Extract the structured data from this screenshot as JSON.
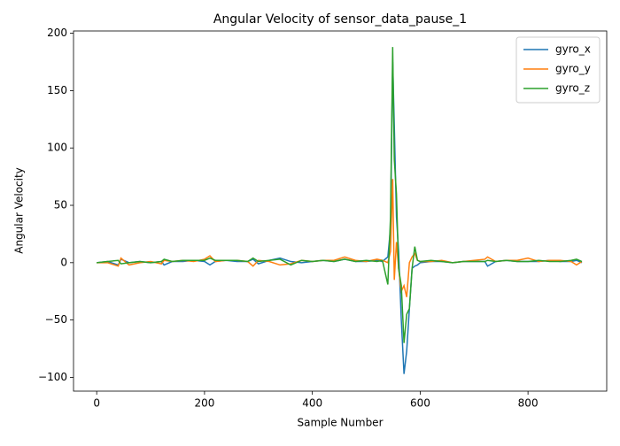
{
  "chart_data": {
    "type": "line",
    "title": "Angular Velocity of sensor_data_pause_1",
    "x_label": "Sample Number",
    "y_label": "Angular Velocity",
    "x": [
      0,
      20,
      40,
      45,
      60,
      80,
      100,
      120,
      125,
      140,
      160,
      180,
      200,
      210,
      220,
      240,
      260,
      280,
      290,
      300,
      320,
      340,
      360,
      380,
      400,
      420,
      440,
      460,
      480,
      500,
      520,
      530,
      540,
      545,
      549,
      552,
      556,
      560,
      565,
      570,
      575,
      580,
      585,
      590,
      595,
      600,
      620,
      640,
      660,
      680,
      700,
      720,
      725,
      740,
      760,
      780,
      800,
      820,
      840,
      860,
      880,
      890,
      900
    ],
    "series": [
      {
        "name": "gyro_x",
        "color": "#1f77b4",
        "values": [
          0,
          1,
          -2,
          3,
          0,
          1,
          0,
          1,
          -2,
          1,
          1,
          2,
          1,
          -2,
          1,
          2,
          1,
          1,
          3,
          -1,
          2,
          4,
          1,
          0,
          1,
          2,
          1,
          3,
          1,
          1,
          2,
          1,
          5,
          30,
          175,
          120,
          40,
          10,
          -50,
          -97,
          -77,
          -40,
          -5,
          -3,
          -2,
          0,
          1,
          1,
          0,
          1,
          1,
          1,
          -3,
          1,
          2,
          1,
          1,
          1,
          2,
          1,
          1,
          2,
          0
        ]
      },
      {
        "name": "gyro_y",
        "color": "#ff7f0e",
        "values": [
          0,
          0,
          -3,
          4,
          -2,
          0,
          1,
          -1,
          2,
          1,
          2,
          1,
          3,
          6,
          1,
          2,
          2,
          1,
          -3,
          2,
          1,
          -2,
          -1,
          2,
          1,
          2,
          2,
          5,
          2,
          1,
          3,
          2,
          0,
          10,
          73,
          -15,
          18,
          -5,
          -25,
          -20,
          -30,
          0,
          5,
          8,
          2,
          1,
          1,
          2,
          0,
          1,
          2,
          3,
          5,
          1,
          2,
          2,
          4,
          1,
          2,
          2,
          1,
          -2,
          1
        ]
      },
      {
        "name": "gyro_z",
        "color": "#2ca02c",
        "values": [
          0,
          1,
          2,
          -1,
          0,
          1,
          0,
          1,
          3,
          1,
          2,
          2,
          2,
          4,
          2,
          2,
          2,
          1,
          4,
          1,
          2,
          3,
          -2,
          2,
          1,
          2,
          1,
          3,
          1,
          2,
          1,
          2,
          -19,
          40,
          188,
          90,
          60,
          -5,
          -20,
          -70,
          -45,
          -40,
          -5,
          14,
          2,
          1,
          2,
          1,
          0,
          1,
          1,
          1,
          2,
          1,
          2,
          1,
          1,
          2,
          1,
          1,
          2,
          3,
          1
        ]
      }
    ],
    "xlim": [
      -43,
      946
    ],
    "ylim": [
      -112,
      202
    ],
    "xticks": [
      0,
      200,
      400,
      600,
      800
    ],
    "yticks": [
      {
        "value": -100,
        "label": "−100"
      },
      {
        "value": -50,
        "label": "−50"
      },
      0,
      50,
      100,
      150,
      200
    ],
    "legend": "upper right"
  }
}
